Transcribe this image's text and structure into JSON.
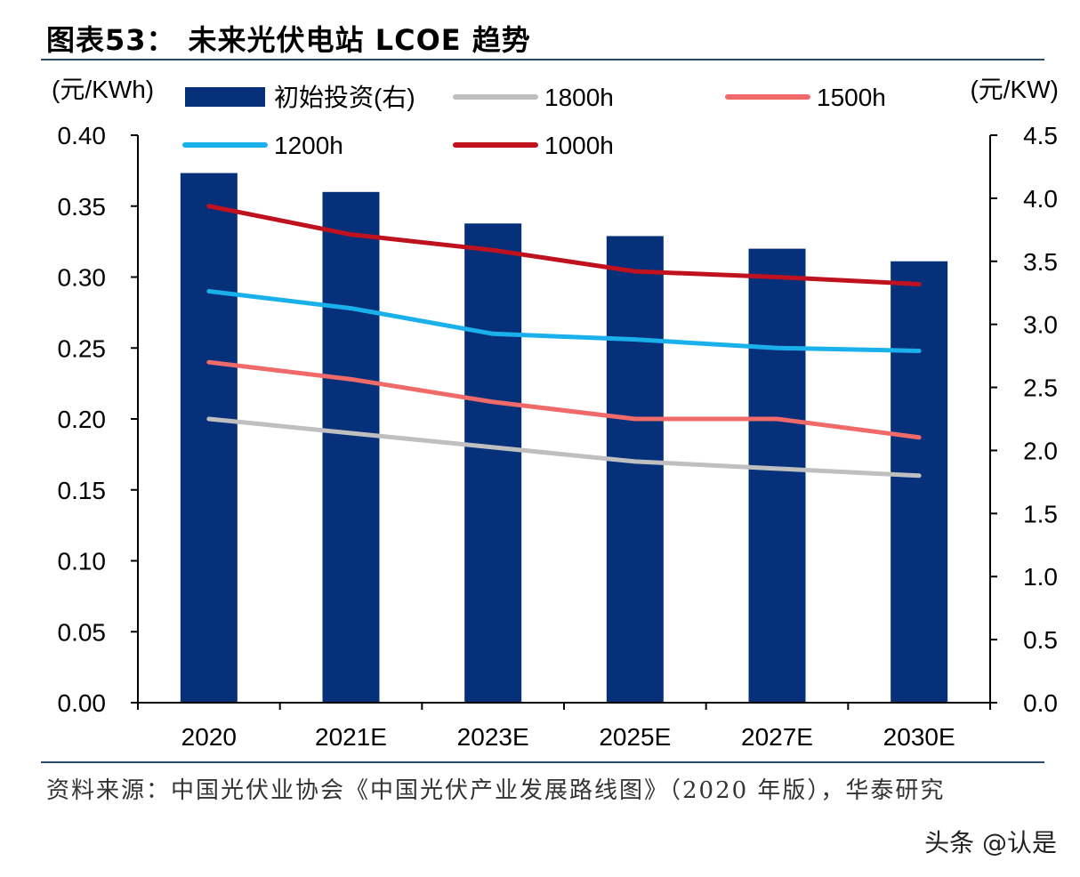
{
  "header": {
    "figure_label": "图表53：",
    "title": "未来光伏电站 LCOE 趋势"
  },
  "chart_data": {
    "type": "bar+line",
    "categories": [
      "2020",
      "2021E",
      "2023E",
      "2025E",
      "2027E",
      "2030E"
    ],
    "left_axis": {
      "unit_label": "(元/KWh)",
      "range": [
        0,
        0.4
      ],
      "ticks": [
        "0.00",
        "0.05",
        "0.10",
        "0.15",
        "0.20",
        "0.25",
        "0.30",
        "0.35",
        "0.40"
      ]
    },
    "right_axis": {
      "unit_label": "(元/KW)",
      "range": [
        0,
        4.5
      ],
      "ticks": [
        "0.0",
        "0.5",
        "1.0",
        "1.5",
        "2.0",
        "2.5",
        "3.0",
        "3.5",
        "4.0",
        "4.5"
      ]
    },
    "bar_series": {
      "name": "初始投资(右)",
      "axis": "right",
      "color": "#06307a",
      "values": [
        4.2,
        4.05,
        3.8,
        3.7,
        3.6,
        3.5
      ]
    },
    "line_series": [
      {
        "name": "1800h",
        "color": "#bfbfbf",
        "values": [
          0.2,
          0.19,
          0.18,
          0.17,
          0.165,
          0.16
        ]
      },
      {
        "name": "1500h",
        "color": "#f06a6a",
        "values": [
          0.24,
          0.228,
          0.212,
          0.2,
          0.2,
          0.187
        ]
      },
      {
        "name": "1200h",
        "color": "#1ab0ec",
        "values": [
          0.29,
          0.278,
          0.26,
          0.256,
          0.25,
          0.248
        ]
      },
      {
        "name": "1000h",
        "color": "#c0121e",
        "values": [
          0.35,
          0.33,
          0.319,
          0.304,
          0.3,
          0.295
        ]
      }
    ],
    "legend_order": [
      "初始投资(右)",
      "1800h",
      "1500h",
      "1200h",
      "1000h"
    ],
    "grid": false
  },
  "footer": {
    "source": "资料来源：中国光伏业协会《中国光伏产业发展路线图》（2020 年版），华泰研究",
    "watermark": "头条 @认是"
  }
}
